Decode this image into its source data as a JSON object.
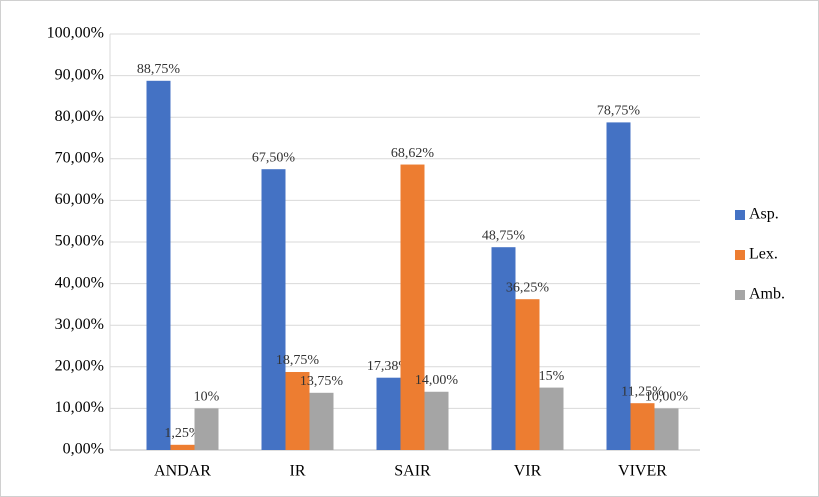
{
  "chart_data": {
    "type": "bar",
    "categories": [
      "ANDAR",
      "IR",
      "SAIR",
      "VIR",
      "VIVER"
    ],
    "series": [
      {
        "name": "Asp.",
        "color": "#4472c4",
        "values": [
          88.75,
          67.5,
          17.38,
          48.75,
          78.75
        ],
        "value_labels": [
          "88,75%",
          "67,50%",
          "17,38%",
          "48,75%",
          "78,75%"
        ]
      },
      {
        "name": "Lex.",
        "color": "#ed7d31",
        "values": [
          1.25,
          18.75,
          68.62,
          36.25,
          11.25
        ],
        "value_labels": [
          "1,25%",
          "18,75%",
          "68,62%",
          "36,25%",
          "11,25%"
        ]
      },
      {
        "name": "Amb.",
        "color": "#a5a5a5",
        "values": [
          10,
          13.75,
          14,
          15,
          10
        ],
        "value_labels": [
          "10%",
          "13,75%",
          "14,00%",
          "15%",
          "10,00%"
        ]
      }
    ],
    "ylim": [
      0,
      100
    ],
    "yticks": [
      {
        "value": 0,
        "label": "0,00%"
      },
      {
        "value": 10,
        "label": "10,00%"
      },
      {
        "value": 20,
        "label": "20,00%"
      },
      {
        "value": 30,
        "label": "30,00%"
      },
      {
        "value": 40,
        "label": "40,00%"
      },
      {
        "value": 50,
        "label": "50,00%"
      },
      {
        "value": 60,
        "label": "60,00%"
      },
      {
        "value": 70,
        "label": "70,00%"
      },
      {
        "value": 80,
        "label": "80,00%"
      },
      {
        "value": 90,
        "label": "90,00%"
      },
      {
        "value": 100,
        "label": "100,00%"
      }
    ],
    "grid": true,
    "legend": "right"
  }
}
